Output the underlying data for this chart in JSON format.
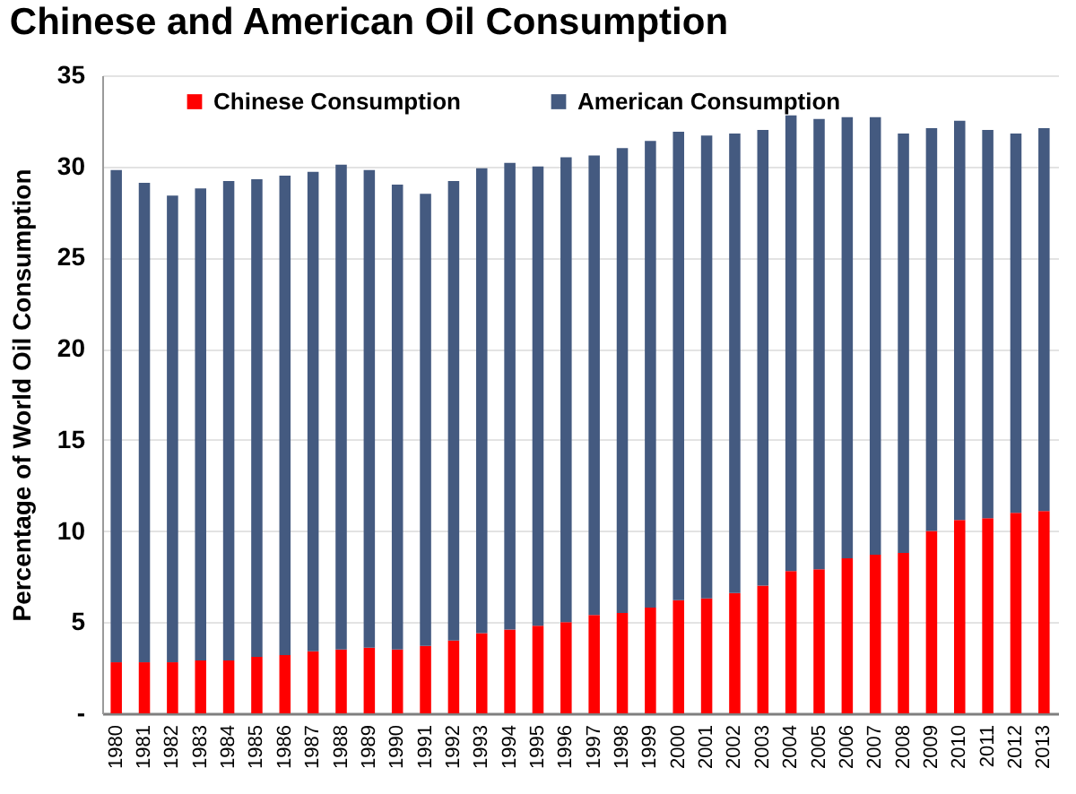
{
  "chart_data": {
    "type": "bar",
    "title": "Chinese and American Oil Consumption",
    "ylabel": "Percentage of World Oil Consumption",
    "categories": [
      "1980",
      "1981",
      "1982",
      "1983",
      "1984",
      "1985",
      "1986",
      "1987",
      "1988",
      "1989",
      "1990",
      "1991",
      "1992",
      "1993",
      "1994",
      "1995",
      "1996",
      "1997",
      "1998",
      "1999",
      "2000",
      "2001",
      "2002",
      "2003",
      "2004",
      "2005",
      "2006",
      "2007",
      "2008",
      "2009",
      "2010",
      "2011",
      "2012",
      "2013"
    ],
    "series": [
      {
        "name": "Chinese Consumption",
        "color": "#ff0000",
        "values": [
          2.8,
          2.8,
          2.8,
          2.9,
          2.9,
          3.1,
          3.2,
          3.4,
          3.5,
          3.6,
          3.5,
          3.7,
          4.0,
          4.4,
          4.6,
          4.8,
          5.0,
          5.4,
          5.5,
          5.8,
          6.2,
          6.3,
          6.6,
          7.0,
          7.8,
          7.9,
          8.5,
          8.7,
          8.8,
          10.0,
          10.6,
          10.7,
          11.0,
          11.1
        ]
      },
      {
        "name": "American Consumption",
        "color": "#445a80",
        "values": [
          27.0,
          26.3,
          25.6,
          25.9,
          26.3,
          26.2,
          26.3,
          26.3,
          26.6,
          26.2,
          25.5,
          24.8,
          25.2,
          25.5,
          25.6,
          25.2,
          25.5,
          25.2,
          25.5,
          25.6,
          25.7,
          25.4,
          25.2,
          25.0,
          25.0,
          24.7,
          24.2,
          24.0,
          23.0,
          22.1,
          21.9,
          21.3,
          20.8,
          21.0
        ]
      }
    ],
    "stacked": true,
    "ylim": [
      0,
      35
    ],
    "yticks": [
      {
        "value": 0,
        "label": "-"
      },
      5,
      10,
      15,
      20,
      25,
      30,
      35
    ],
    "grid": "y",
    "legend": "top left"
  }
}
